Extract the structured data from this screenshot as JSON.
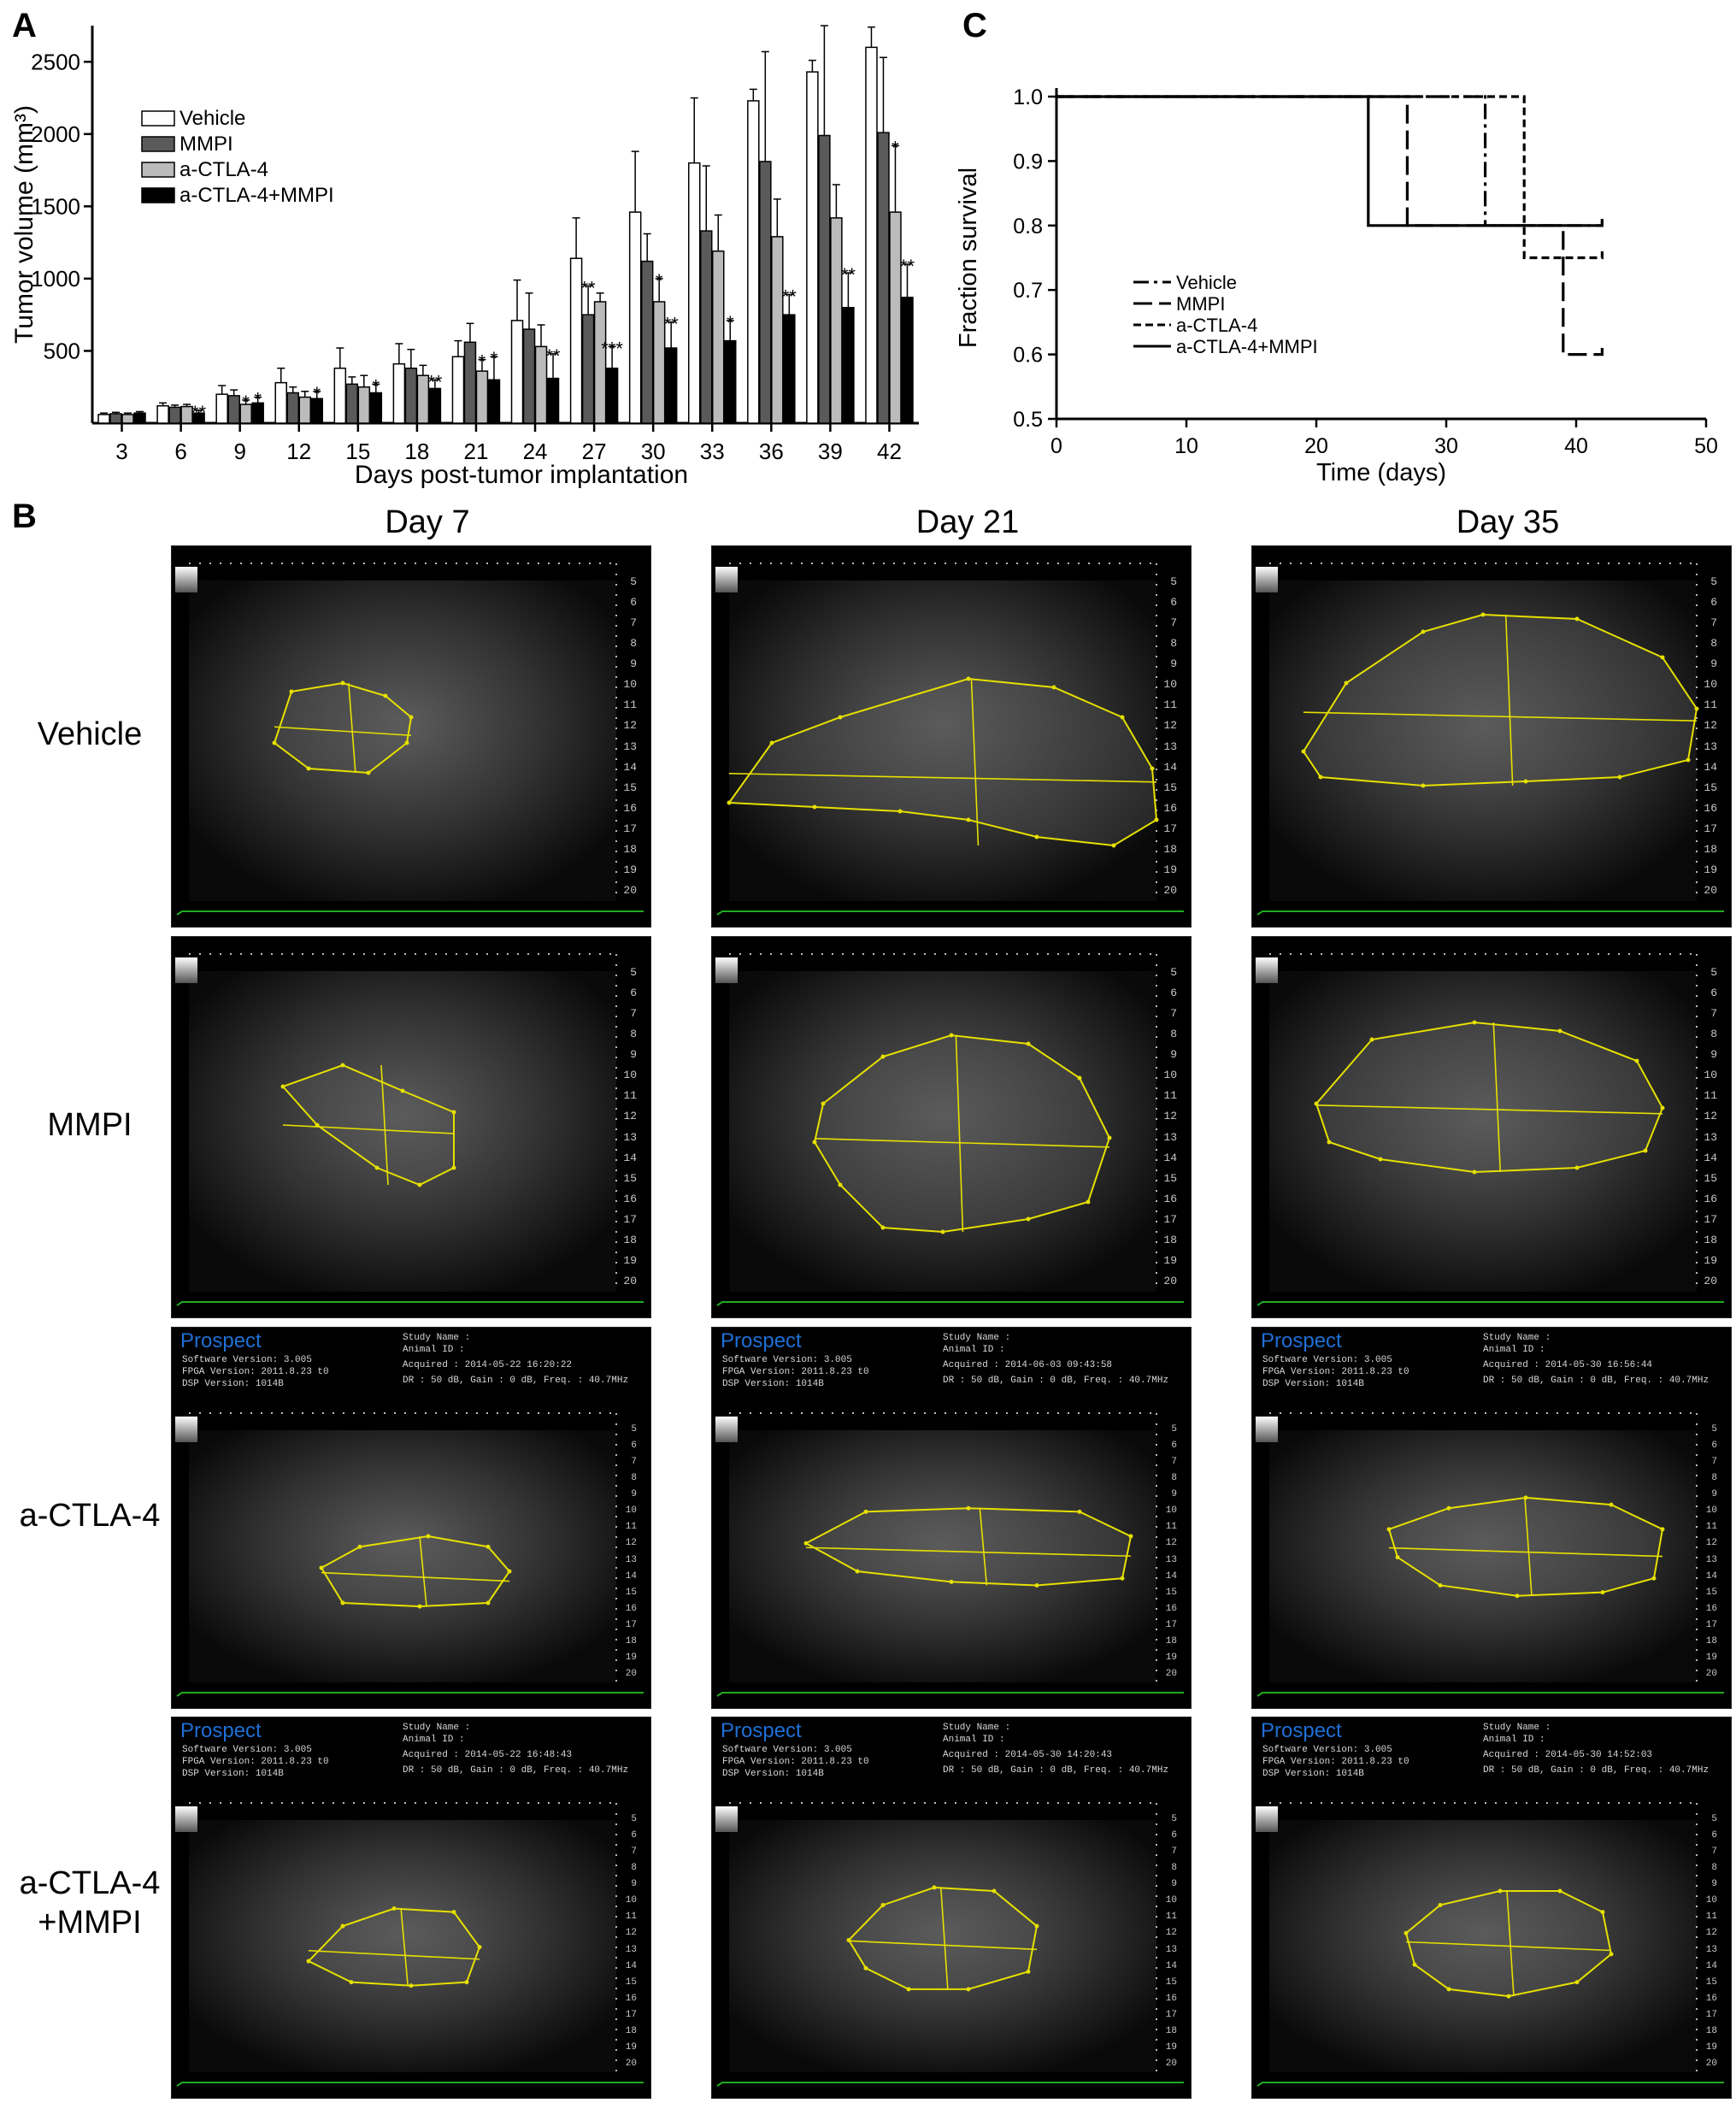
{
  "panels": {
    "a": "A",
    "b": "B",
    "c": "C"
  },
  "chart_data": [
    {
      "type": "bar",
      "panel": "A",
      "xlabel": "Days post-tumor implantation",
      "ylabel": "Tumor volume (mm³)",
      "ylim": [
        0,
        2750
      ],
      "yticks": [
        500,
        1000,
        1500,
        2000,
        2500
      ],
      "categories": [
        "3",
        "6",
        "9",
        "12",
        "15",
        "18",
        "21",
        "24",
        "27",
        "30",
        "33",
        "36",
        "39",
        "42"
      ],
      "legend_position": "top-left",
      "series": [
        {
          "name": "Vehicle",
          "color": "#ffffff",
          "values": [
            60,
            120,
            200,
            280,
            380,
            410,
            460,
            710,
            1140,
            1460,
            1800,
            2230,
            2430,
            2600
          ],
          "errors": [
            10,
            20,
            60,
            100,
            140,
            140,
            110,
            280,
            280,
            420,
            450,
            80,
            80,
            140
          ],
          "stars": [
            "",
            "",
            "",
            "",
            "",
            "",
            "",
            "",
            "",
            "",
            "",
            "",
            "",
            ""
          ]
        },
        {
          "name": "MMPI",
          "color": "#5a5a5a",
          "values": [
            65,
            110,
            190,
            210,
            270,
            380,
            560,
            650,
            750,
            1120,
            1330,
            1810,
            1990,
            2010
          ],
          "errors": [
            10,
            15,
            40,
            40,
            50,
            130,
            130,
            250,
            200,
            190,
            450,
            760,
            760,
            520
          ],
          "stars": [
            "",
            "",
            "",
            "",
            "",
            "",
            "",
            "",
            "**",
            "",
            "",
            "",
            "",
            ""
          ]
        },
        {
          "name": "a-CTLA-4",
          "color": "#bbbbbb",
          "values": [
            60,
            115,
            130,
            180,
            250,
            330,
            360,
            530,
            840,
            840,
            1190,
            1290,
            1420,
            1460
          ],
          "errors": [
            10,
            15,
            30,
            40,
            80,
            70,
            80,
            150,
            60,
            160,
            250,
            260,
            230,
            460
          ],
          "stars": [
            "",
            "",
            "*",
            "",
            "",
            "",
            "*",
            "",
            "",
            "*",
            "",
            "",
            "",
            "*"
          ]
        },
        {
          "name": "a-CTLA-4+MMPI",
          "color": "#000000",
          "values": [
            70,
            70,
            140,
            170,
            210,
            240,
            300,
            310,
            380,
            520,
            570,
            750,
            800,
            870
          ],
          "errors": [
            10,
            20,
            40,
            50,
            60,
            60,
            160,
            170,
            150,
            180,
            140,
            140,
            240,
            230
          ],
          "stars": [
            "",
            "**",
            "*",
            "*",
            "*",
            "**",
            "*",
            "**",
            "***",
            "**",
            "*",
            "**",
            "**",
            "**"
          ]
        }
      ]
    },
    {
      "type": "line",
      "panel": "C",
      "xlabel": "Time (days)",
      "ylabel": "Fraction survival",
      "xlim": [
        0,
        50
      ],
      "ylim": [
        0.5,
        1.0
      ],
      "xticks": [
        0,
        10,
        20,
        30,
        40,
        50
      ],
      "yticks": [
        0.5,
        0.6,
        0.7,
        0.8,
        0.9,
        1.0
      ],
      "legend_position": "center-left",
      "series": [
        {
          "name": "Vehicle",
          "style": "dashdot",
          "x": [
            0,
            33,
            33,
            42,
            42
          ],
          "y": [
            1.0,
            1.0,
            0.8,
            0.8,
            0.81
          ]
        },
        {
          "name": "MMPI",
          "style": "longdash",
          "x": [
            0,
            27,
            27,
            39,
            39,
            42,
            42
          ],
          "y": [
            1.0,
            1.0,
            0.8,
            0.8,
            0.6,
            0.6,
            0.61
          ]
        },
        {
          "name": "a-CTLA-4",
          "style": "shortdash",
          "x": [
            0,
            36,
            36,
            42,
            42
          ],
          "y": [
            1.0,
            1.0,
            0.75,
            0.75,
            0.76
          ]
        },
        {
          "name": "a-CTLA-4+MMPI",
          "style": "solid",
          "x": [
            0,
            24,
            24,
            42,
            42
          ],
          "y": [
            1.0,
            1.0,
            0.8,
            0.8,
            0.81
          ]
        }
      ]
    }
  ],
  "panel_b": {
    "days": [
      "Day 7",
      "Day 21",
      "Day 35"
    ],
    "rows": [
      "Vehicle",
      "MMPI",
      "a-CTLA-4",
      "a-CTLA-4\n+MMPI"
    ],
    "depth_ticks": [
      "5",
      "6",
      "7",
      "8",
      "9",
      "10",
      "11",
      "12",
      "13",
      "14",
      "15",
      "16",
      "17",
      "18",
      "19",
      "20"
    ],
    "header": {
      "brand": "Prospect",
      "software": "Software Version: 3.005",
      "fpga": "FPGA Version: 2011.8.23 t0",
      "dsp": "DSP Version: 1014B",
      "study": "Study Name :",
      "animal": "Animal ID :",
      "settings": "DR : 50 dB, Gain : 0 dB, Freq. : 40.7MHz"
    },
    "acquired": [
      [
        "",
        "",
        ""
      ],
      [
        "",
        "",
        ""
      ],
      [
        "Acquired : 2014-05-22 16:20:22",
        "Acquired : 2014-06-03 09:43:58",
        "Acquired : 2014-05-30 16:56:44"
      ],
      [
        "Acquired : 2014-05-22 16:48:43",
        "Acquired : 2014-05-30 14:20:43",
        "Acquired : 2014-05-30 14:52:03"
      ]
    ]
  }
}
